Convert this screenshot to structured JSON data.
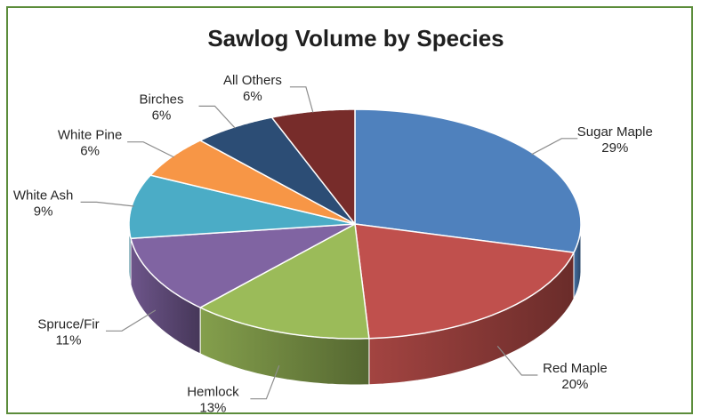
{
  "chart_data": {
    "type": "pie",
    "style": "3d",
    "title": "Sawlog Volume by Species",
    "legend": "none",
    "categories": [
      "Sugar Maple",
      "Red Maple",
      "Hemlock",
      "Spruce/Fir",
      "White Ash",
      "White Pine",
      "Birches",
      "All Others"
    ],
    "values": [
      29,
      20,
      13,
      11,
      9,
      6,
      6,
      6
    ],
    "labels": [
      "29%",
      "20%",
      "13%",
      "11%",
      "9%",
      "6%",
      "6%",
      "6%"
    ],
    "colors": [
      "#4f81bd",
      "#c0504d",
      "#9bbb59",
      "#8064a2",
      "#4bacc6",
      "#f79646",
      "#2c4d75",
      "#772c2a"
    ],
    "frame_color": "#5b8c3a"
  }
}
